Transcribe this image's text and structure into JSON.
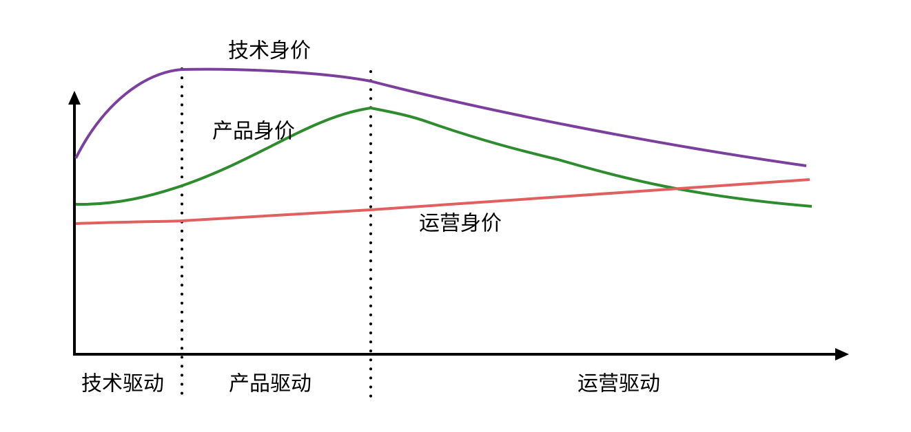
{
  "curves": [
    {
      "label": "技术身价"
    },
    {
      "label": "产品身价"
    },
    {
      "label": "运营身价"
    }
  ],
  "phases": [
    {
      "label": "技术驱动"
    },
    {
      "label": "产品驱动"
    },
    {
      "label": "运营驱动"
    }
  ]
}
